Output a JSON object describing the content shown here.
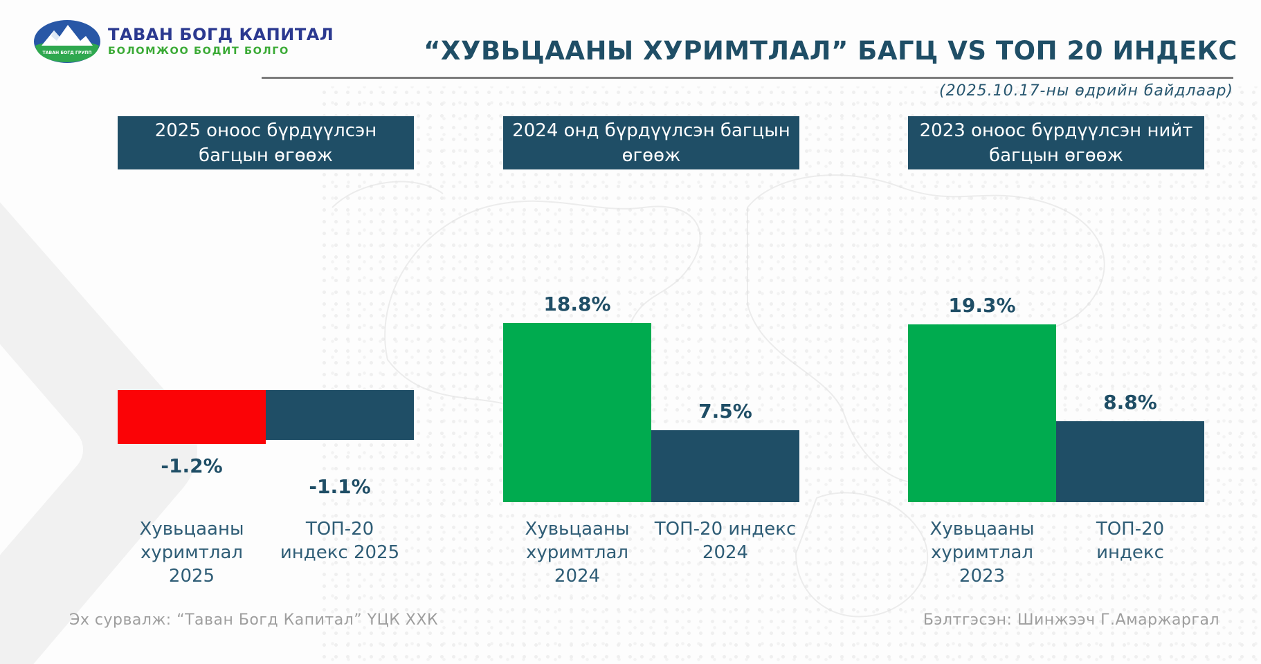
{
  "logo": {
    "line1": "ТАВАН БОГД КАПИТАЛ",
    "line2": "БОЛОМЖОО БОДИТ БОЛГО",
    "emblem_text": "ТАВАН БОГД ГРУПП"
  },
  "header": {
    "title": "“ХУВЬЦААНЫ ХУРИМТЛАЛ” БАГЦ VS ТОП 20 ИНДЕКС",
    "subtitle": "(2025.10.17-ны өдрийн байдлаар)"
  },
  "footer": {
    "source": "Эх сурвалж: “Таван Богд Капитал” ҮЦК ХХК",
    "prepared_by": "Бэлтгэсэн: Шинжээч Г.Амаржаргал"
  },
  "colors": {
    "dark_blue": "#1F4E66",
    "green": "#00AB4F",
    "red": "#FB0306",
    "label_blue": "#2F5D76",
    "footer_gray": "#9E9E9E"
  },
  "chart_data": {
    "type": "bar",
    "title": "“ХУВЬЦААНЫ ХУРИМТЛАЛ” БАГЦ VS ТОП 20 ИНДЕКС",
    "as_of": "(2025.10.17-ны өдрийн байдлаар)",
    "unit": "%",
    "legend_position": "none",
    "grid": false,
    "groups": [
      {
        "header": "2025 оноос бүрдүүлсэн багцын өгөөж",
        "ylim": [
          -1.4,
          0
        ],
        "bars": [
          {
            "label": "Хувьцааны хуримтлал 2025",
            "label_lines": [
              "Хувьцааны",
              "хуримтлал",
              "2025"
            ],
            "value": -1.2,
            "value_label": "-1.2%",
            "color": "red"
          },
          {
            "label": "ТОП-20 индекс 2025",
            "label_lines": [
              "ТОП-20",
              "индекс 2025"
            ],
            "value": -1.1,
            "value_label": "-1.1%",
            "color": "dark_blue"
          }
        ]
      },
      {
        "header": "2024 онд бүрдүүлсэн багцын өгөөж",
        "ylim": [
          0,
          22
        ],
        "bars": [
          {
            "label": "Хувьцааны хуримтлал 2024",
            "label_lines": [
              "Хувьцааны",
              "хуримтлал",
              "2024"
            ],
            "value": 18.8,
            "value_label": "18.8%",
            "color": "green"
          },
          {
            "label": "ТОП-20 индекс 2024",
            "label_lines": [
              "ТОП-20 индекс",
              "2024"
            ],
            "value": 7.5,
            "value_label": "7.5%",
            "color": "dark_blue"
          }
        ]
      },
      {
        "header": "2023 оноос бүрдүүлсэн нийт багцын өгөөж",
        "ylim": [
          0,
          22
        ],
        "bars": [
          {
            "label": "Хувьцааны хуримтлал 2023",
            "label_lines": [
              "Хувьцааны",
              "хуримтлал",
              "2023"
            ],
            "value": 19.3,
            "value_label": "19.3%",
            "color": "green"
          },
          {
            "label": "ТОП-20 индекс",
            "label_lines": [
              "ТОП-20",
              "индекс"
            ],
            "value": 8.8,
            "value_label": "8.8%",
            "color": "dark_blue"
          }
        ]
      }
    ]
  }
}
